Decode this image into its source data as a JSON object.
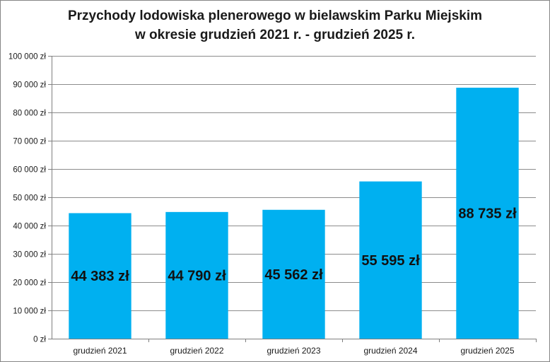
{
  "chart_data": {
    "type": "bar",
    "title": [
      "Przychody lodowiska plenerowego w bielawskim Parku Miejskim",
      "w okresie grudzień 2021 r. - grudzień 2025 r."
    ],
    "categories": [
      "grudzień 2021",
      "grudzień 2022",
      "grudzień 2023",
      "grudzień 2024",
      "grudzień 2025"
    ],
    "values": [
      44383,
      44790,
      45562,
      55595,
      88735
    ],
    "data_labels": [
      "44 383 zł",
      "44 790 zł",
      "45 562 zł",
      "55 595 zł",
      "88 735 zł"
    ],
    "ylim": [
      0,
      100000
    ],
    "y_ticks": [
      0,
      10000,
      20000,
      30000,
      40000,
      50000,
      60000,
      70000,
      80000,
      90000,
      100000
    ],
    "y_tick_labels": [
      "0 zł",
      "10 000 zł",
      "20 000 zł",
      "30 000 zł",
      "40 000 zł",
      "50 000 zł",
      "60 000 zł",
      "70 000 zł",
      "80 000 zł",
      "90 000 zł",
      "100 000 zł"
    ],
    "gridlines": true,
    "legend": "none",
    "colors": {
      "bar": "#00b0f0",
      "grid": "#8c8c8c",
      "axis": "#7f7f7f"
    }
  }
}
